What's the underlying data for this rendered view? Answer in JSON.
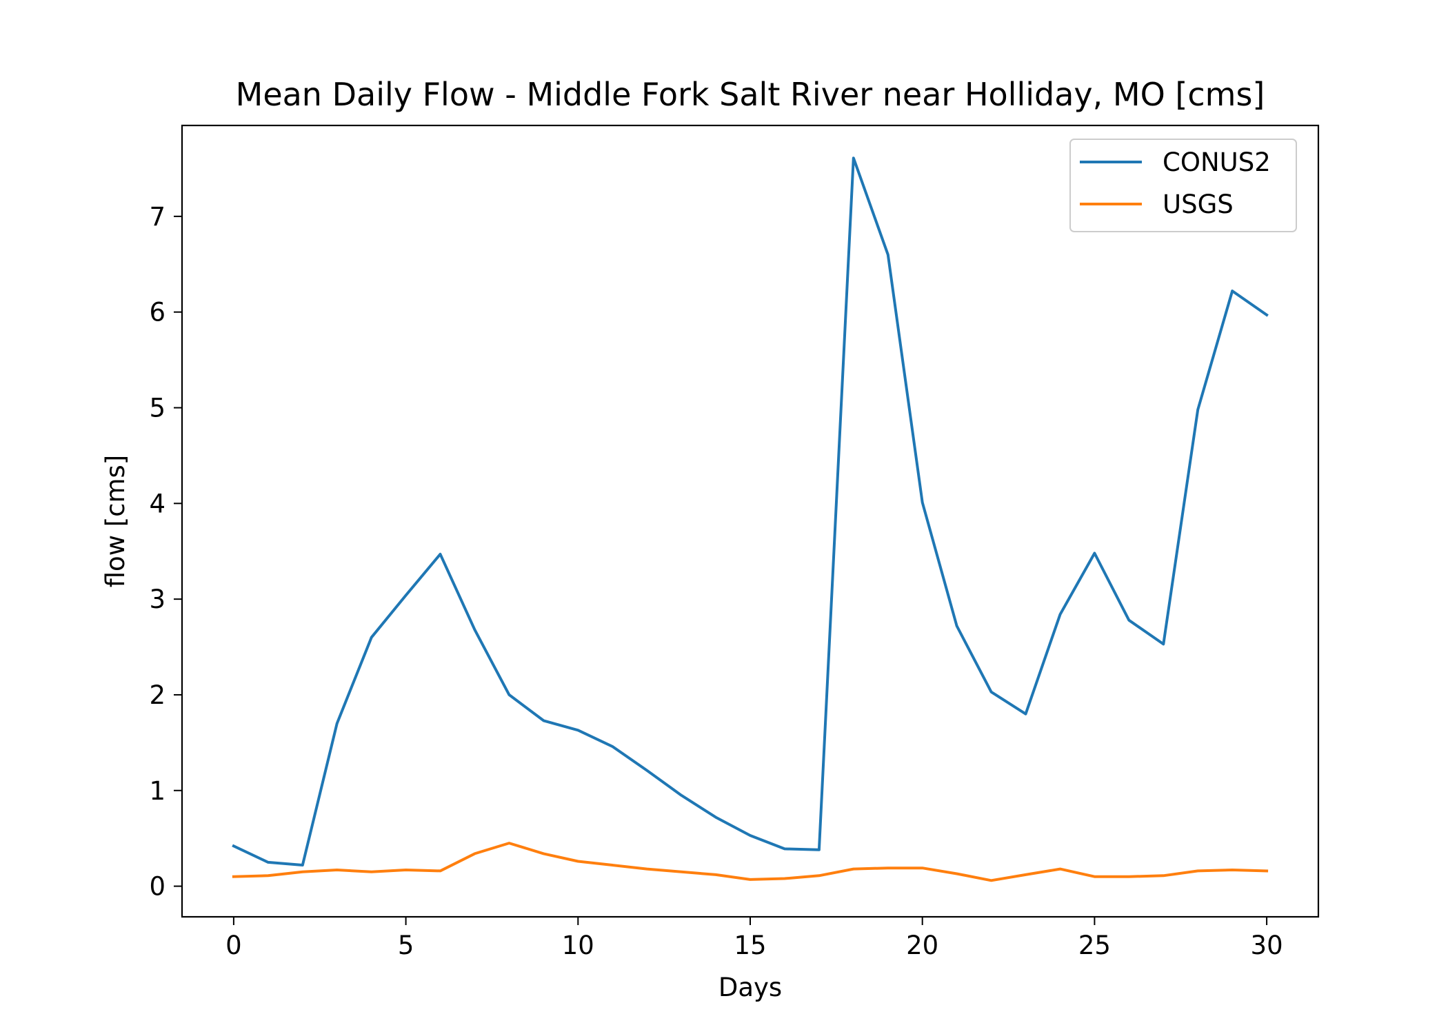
{
  "chart_data": {
    "type": "line",
    "title": "Mean Daily Flow - Middle Fork Salt River near Holliday, MO [cms]",
    "xlabel": "Days",
    "ylabel": "flow [cms]",
    "xlim": [
      -1.5,
      31.5
    ],
    "ylim": [
      -0.32,
      7.95
    ],
    "xticks": [
      0,
      5,
      10,
      15,
      20,
      25,
      30
    ],
    "yticks": [
      0,
      1,
      2,
      3,
      4,
      5,
      6,
      7
    ],
    "grid": false,
    "legend_position": "top-right",
    "x": [
      0,
      1,
      2,
      3,
      4,
      5,
      6,
      7,
      8,
      9,
      10,
      11,
      12,
      13,
      14,
      15,
      16,
      17,
      18,
      19,
      20,
      21,
      22,
      23,
      24,
      25,
      26,
      27,
      28,
      29,
      30
    ],
    "series": [
      {
        "name": "CONUS2",
        "color": "#1f77b4",
        "values": [
          0.42,
          0.25,
          0.22,
          1.7,
          2.6,
          3.04,
          3.47,
          2.68,
          2.0,
          1.73,
          1.63,
          1.46,
          1.21,
          0.95,
          0.72,
          0.53,
          0.39,
          0.38,
          7.61,
          6.6,
          4.01,
          2.72,
          2.03,
          1.8,
          2.84,
          3.48,
          2.78,
          2.53,
          4.98,
          6.22,
          5.97
        ]
      },
      {
        "name": "USGS",
        "color": "#ff7f0e",
        "values": [
          0.1,
          0.11,
          0.15,
          0.17,
          0.15,
          0.17,
          0.16,
          0.34,
          0.45,
          0.34,
          0.26,
          0.22,
          0.18,
          0.15,
          0.12,
          0.07,
          0.08,
          0.11,
          0.18,
          0.19,
          0.19,
          0.13,
          0.06,
          0.12,
          0.18,
          0.1,
          0.1,
          0.11,
          0.16,
          0.17,
          0.16
        ]
      }
    ]
  }
}
